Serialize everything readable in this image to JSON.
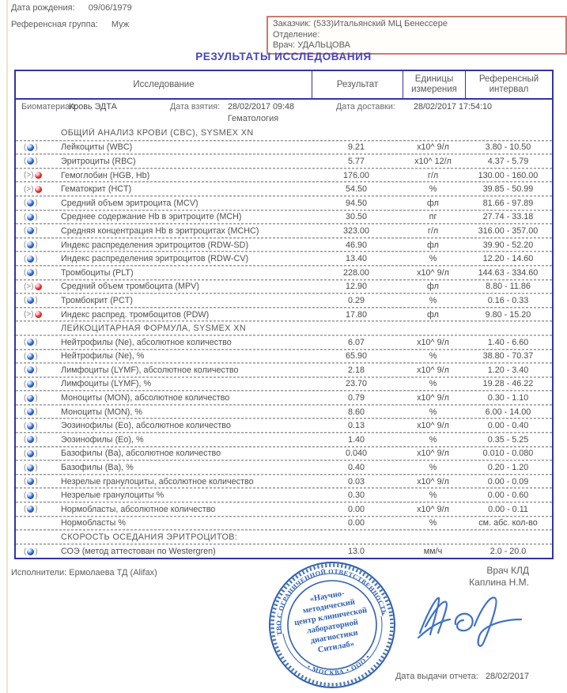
{
  "page": {
    "title": "РЕЗУЛЬТАТЫ ИССЛЕДОВАНИЯ"
  },
  "patient": {
    "dob_label": "Дата рождения:",
    "dob": "09/06/1979",
    "ref_group_label": "Референсная группа:",
    "ref_group": "Муж"
  },
  "order_box": {
    "customer_label": "Заказчик:",
    "customer": "(533)Итальянский МЦ Бенессере",
    "department_label": "Отделение:",
    "department": "",
    "doctor_label": "Врач:",
    "doctor": "УДАЛЬЦОВА"
  },
  "table": {
    "headers": {
      "test": "Исследование",
      "result": "Результат",
      "units": "Единицы измерения",
      "ref": "Референсный интервал"
    },
    "meta": {
      "biomaterial_label": "Биоматериал:",
      "biomaterial": "Кровь ЭДТА",
      "taken_label": "Дата взятия:",
      "taken": "28/02/2017 09:48",
      "delivered_label": "Дата доставки:",
      "delivered": "28/02/2017 17:54:10"
    },
    "group": "Гематология",
    "rows": [
      {
        "type": "section",
        "name": "ОБЩИЙ АНАЛИЗ КРОВИ (CBC), SYSMEX XN"
      },
      {
        "type": "test",
        "flag": "normal",
        "name": "Лейкоциты (WBC)",
        "result": "9.21",
        "unit": "х10^ 9/л",
        "ref": "3.80 - 10.50"
      },
      {
        "type": "test",
        "flag": "normal",
        "name": "Эритроциты (RBC)",
        "result": "5.77",
        "unit": "х10^ 12/л",
        "ref": "4.37 - 5.79"
      },
      {
        "type": "test",
        "flag": "high",
        "name": "Гемоглобин (HGB, Hb)",
        "result": "176.00",
        "unit": "г/л",
        "ref": "130.00 - 160.00"
      },
      {
        "type": "test",
        "flag": "high",
        "name": "Гематокрит (HCT)",
        "result": "54.50",
        "unit": "%",
        "ref": "39.85 - 50.99"
      },
      {
        "type": "test",
        "flag": "normal",
        "name": "Средний объем эритроцита (MCV)",
        "result": "94.50",
        "unit": "фл",
        "ref": "81.66 - 97.89"
      },
      {
        "type": "test",
        "flag": "normal",
        "name": "Среднее содержание Hb в эритроците (MCH)",
        "result": "30.50",
        "unit": "пг",
        "ref": "27.74 - 33.18"
      },
      {
        "type": "test",
        "flag": "normal",
        "name": "Средняя концентрация Hb в эритроцитах (MCHC)",
        "result": "323.00",
        "unit": "г/л",
        "ref": "316.00 - 357.00"
      },
      {
        "type": "test",
        "flag": "normal",
        "name": "Индекс распределения эритроцитов (RDW-SD)",
        "result": "46.90",
        "unit": "фл",
        "ref": "39.90 - 52.20"
      },
      {
        "type": "test",
        "flag": "normal",
        "name": "Индекс распределения эритроцитов (RDW-CV)",
        "result": "13.40",
        "unit": "%",
        "ref": "12.20 - 14.60"
      },
      {
        "type": "test",
        "flag": "normal",
        "name": "Тромбоциты (PLT)",
        "result": "228.00",
        "unit": "х10^ 9/л",
        "ref": "144.63 - 334.60"
      },
      {
        "type": "test",
        "flag": "high",
        "name": "Средний объем тромбоцита (MPV)",
        "result": "12.90",
        "unit": "фл",
        "ref": "8.80 - 11.86"
      },
      {
        "type": "test",
        "flag": "normal",
        "name": "Тромбокрит (PCT)",
        "result": "0.29",
        "unit": "%",
        "ref": "0.16 - 0.33"
      },
      {
        "type": "test",
        "flag": "high",
        "name": "Индекс распред. тромбоцитов (PDW)",
        "result": "17.80",
        "unit": "фл",
        "ref": "9.80 - 15.20"
      },
      {
        "type": "section",
        "name": "ЛЕЙКОЦИТАРНАЯ ФОРМУЛА, SYSMEX XN"
      },
      {
        "type": "test",
        "flag": "normal",
        "name": "Нейтрофилы (Ne), абсолютное количество",
        "result": "6.07",
        "unit": "х10^ 9/л",
        "ref": "1.40 - 6.60"
      },
      {
        "type": "test",
        "flag": "normal",
        "name": "Нейтрофилы (Ne), %",
        "result": "65.90",
        "unit": "%",
        "ref": "38.80 - 70.37"
      },
      {
        "type": "test",
        "flag": "normal",
        "name": "Лимфоциты (LYMF), абсолютное количество",
        "result": "2.18",
        "unit": "х10^ 9/л",
        "ref": "1.20 - 3.40"
      },
      {
        "type": "test",
        "flag": "normal",
        "name": "Лимфоциты (LYMF), %",
        "result": "23.70",
        "unit": "%",
        "ref": "19.28 - 46.22"
      },
      {
        "type": "test",
        "flag": "normal",
        "name": "Моноциты (MON), абсолютное количество",
        "result": "0.79",
        "unit": "х10^ 9/л",
        "ref": "0.30 - 1.10"
      },
      {
        "type": "test",
        "flag": "normal",
        "name": "Моноциты (MON), %",
        "result": "8.60",
        "unit": "%",
        "ref": "6.00 - 14.00"
      },
      {
        "type": "test",
        "flag": "normal",
        "name": "Эозинофилы (Eo), абсолютное количество",
        "result": "0.13",
        "unit": "х10^ 9/л",
        "ref": "0.00 - 0.40"
      },
      {
        "type": "test",
        "flag": "normal",
        "name": "Эозинофилы (Eo), %",
        "result": "1.40",
        "unit": "%",
        "ref": "0.35 - 5.25"
      },
      {
        "type": "test",
        "flag": "normal",
        "name": "Базофилы (Ba), абсолютное количество",
        "result": "0.040",
        "unit": "х10^ 9/л",
        "ref": "0.010 - 0.080"
      },
      {
        "type": "test",
        "flag": "normal",
        "name": "Базофилы (Ba), %",
        "result": "0.40",
        "unit": "%",
        "ref": "0.20 - 1.20"
      },
      {
        "type": "test",
        "flag": "normal",
        "name": "Незрелые гранулоциты, абсолютное количество",
        "result": "0.03",
        "unit": "х10^ 9/л",
        "ref": "0.00 - 0.09"
      },
      {
        "type": "test",
        "flag": "normal",
        "name": "Незрелые гранулоциты %",
        "result": "0.30",
        "unit": "%",
        "ref": "0.00 - 0.60"
      },
      {
        "type": "test",
        "flag": "normal",
        "name": "Нормобласты, абсолютное количество",
        "result": "0.00",
        "unit": "х10^ 9/л",
        "ref": "0.00 - 0.11"
      },
      {
        "type": "test",
        "flag": "none",
        "name": "Нормобласты %",
        "result": "0.00",
        "unit": "%",
        "ref": "см. абс. кол-во"
      },
      {
        "type": "section",
        "name": "СКОРОСТЬ ОСЕДАНИЯ ЭРИТРОЦИТОВ:"
      },
      {
        "type": "test",
        "flag": "normal",
        "name": "СОЭ (метод аттестован по Westergren)",
        "result": "13.0",
        "unit": "мм/ч",
        "ref": "2.0 - 20.0"
      }
    ]
  },
  "footer": {
    "performers_label": "Исполнители:",
    "performers": "Ермолаева ТД (Alifax)",
    "doctor_title": "Врач КЛД",
    "doctor_name": "Каплина Н.М.",
    "issue_label": "Дата выдачи отчета:",
    "issue_date": "28/02/2017",
    "stamp": {
      "ring_top": "ОБЩЕСТВО С ОГРАНИЧЕННОЙ ОТВЕТСТВЕННОСТЬЮ ОГРН",
      "ring_bottom": "• МОСКВА • ООО •",
      "center_lines": [
        "«Научно-",
        "методический",
        "центр клинической",
        "лабораторной",
        "диагностики",
        "Ситилаб»"
      ]
    }
  },
  "colors": {
    "table_border": "#3434a4",
    "title_blue": "#4545c0",
    "order_box_border": "#c97b70",
    "normal_marker": "#2b63d0",
    "high_marker": "#e03030",
    "stamp_blue": "#2e5fae",
    "signature_blue": "#3f72c8"
  }
}
